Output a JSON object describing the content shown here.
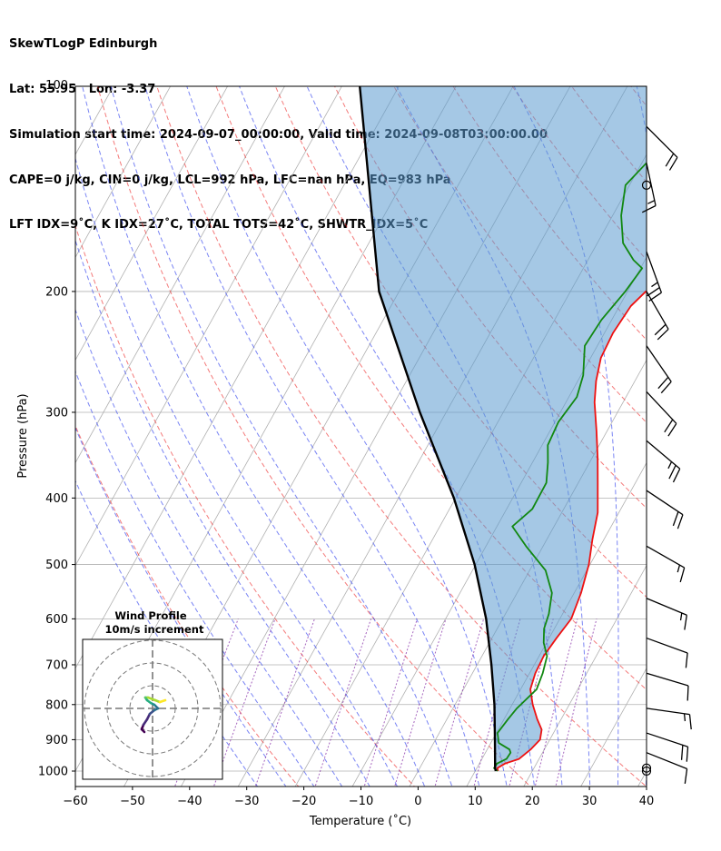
{
  "header": {
    "line1": "SkewTLogP Edinburgh",
    "line2": "Lat: 55.95   Lon: -3.37",
    "line3": "Simulation start time: 2024-09-07_00:00:00, Valid time: 2024-09-08T03:00:00.00",
    "line4": "CAPE=0 j/kg, CIN=0 j/kg, LCL=992 hPa, LFC=nan hPa, EQ=983 hPa",
    "line5": "LFT IDX=9˚C, K IDX=27˚C, TOTAL TOTS=42˚C, SHWTR_IDX=5˚C"
  },
  "chart_data": {
    "type": "skewt-logp",
    "xlabel": "Temperature (˚C)",
    "ylabel": "Pressure (hPa)",
    "xlim": [
      -60,
      40
    ],
    "ylim": [
      1040,
      100
    ],
    "x_ticks": [
      -60,
      -50,
      -40,
      -30,
      -20,
      -10,
      0,
      10,
      20,
      30,
      40
    ],
    "x_tick_labels": [
      "−60",
      "−50",
      "−40",
      "−30",
      "−20",
      "−10",
      "0",
      "10",
      "20",
      "30",
      "40"
    ],
    "y_ticks": [
      1000,
      900,
      800,
      700,
      600,
      500,
      400,
      300,
      200,
      100
    ],
    "y_scale": "log",
    "grid": true,
    "colors": {
      "temperature": "#ee1111",
      "dewpoint": "#118811",
      "parcel": "#000000",
      "shade": "#5b9bcf",
      "dry_adiabat": "#ee3333",
      "moist_adiabat": "#3344ee",
      "mixing_ratio": "#8833aa"
    },
    "series": [
      {
        "name": "",
        "role": "temperature",
        "points": [
          [
            14.0,
            1000
          ],
          [
            13.6,
            990
          ],
          [
            14.5,
            975
          ],
          [
            16.5,
            960
          ],
          [
            17.6,
            930
          ],
          [
            18.3,
            900
          ],
          [
            17.6,
            870
          ],
          [
            15.8,
            840
          ],
          [
            13.6,
            800
          ],
          [
            11.7,
            760
          ],
          [
            11.0,
            720
          ],
          [
            10.8,
            680
          ],
          [
            11.3,
            640
          ],
          [
            12.0,
            600
          ],
          [
            11.2,
            550
          ],
          [
            9.8,
            500
          ],
          [
            8.0,
            460
          ],
          [
            6.3,
            420
          ],
          [
            3.4,
            380
          ],
          [
            1.0,
            350
          ],
          [
            -1.8,
            320
          ],
          [
            -5.0,
            290
          ],
          [
            -6.8,
            270
          ],
          [
            -8.2,
            250
          ],
          [
            -8.5,
            230
          ],
          [
            -8.0,
            210
          ],
          [
            -6.8,
            200
          ],
          [
            -4.5,
            190
          ],
          [
            -3.0,
            180
          ],
          [
            -1.8,
            170
          ],
          [
            -0.2,
            160
          ],
          [
            3.7,
            150
          ],
          [
            5.6,
            140
          ],
          [
            7.4,
            130
          ],
          [
            8.3,
            120
          ],
          [
            10.5,
            110
          ],
          [
            11.4,
            100
          ]
        ]
      },
      {
        "name": "",
        "role": "dewpoint",
        "points": [
          [
            13.9,
            1000
          ],
          [
            13.0,
            990
          ],
          [
            13.1,
            975
          ],
          [
            14.3,
            960
          ],
          [
            14.4,
            940
          ],
          [
            13.9,
            930
          ],
          [
            11.4,
            910
          ],
          [
            10.2,
            880
          ],
          [
            10.7,
            840
          ],
          [
            11.2,
            810
          ],
          [
            12.8,
            760
          ],
          [
            12.3,
            720
          ],
          [
            11.4,
            680
          ],
          [
            9.5,
            650
          ],
          [
            8.2,
            620
          ],
          [
            7.6,
            590
          ],
          [
            6.1,
            550
          ],
          [
            2.8,
            510
          ],
          [
            -3.0,
            470
          ],
          [
            -7.3,
            440
          ],
          [
            -5.5,
            415
          ],
          [
            -5.6,
            380
          ],
          [
            -7.3,
            355
          ],
          [
            -9.0,
            335
          ],
          [
            -9.4,
            310
          ],
          [
            -8.6,
            285
          ],
          [
            -9.6,
            265
          ],
          [
            -12.2,
            240
          ],
          [
            -11.8,
            220
          ],
          [
            -10.4,
            200
          ],
          [
            -9.7,
            185
          ],
          [
            -12.0,
            180
          ],
          [
            -15.5,
            170
          ],
          [
            -18.5,
            155
          ],
          [
            -20.7,
            140
          ],
          [
            -18.4,
            125
          ],
          [
            -14.8,
            112
          ],
          [
            -11.7,
            100
          ]
        ]
      },
      {
        "name": "",
        "role": "parcel",
        "points": [
          [
            13.6,
            1000
          ],
          [
            13.2,
            990
          ],
          [
            10.4,
            900
          ],
          [
            6.9,
            800
          ],
          [
            2.5,
            700
          ],
          [
            -2.9,
            600
          ],
          [
            -10.2,
            500
          ],
          [
            -20.3,
            400
          ],
          [
            -34.6,
            300
          ],
          [
            -53.5,
            200
          ],
          [
            -77.0,
            100
          ]
        ]
      }
    ],
    "inset": {
      "title_line1": "Wind Profile",
      "title_line2": "10m/s increment",
      "hodograph_u": [
        -0.9,
        -1.2,
        -1.0,
        -0.6,
        -0.3,
        0.2,
        0.6,
        0.2,
        -0.2,
        -0.6,
        -0.8,
        -0.5,
        0.3,
        0.8,
        1.4
      ],
      "hodograph_v": [
        -2.6,
        -2.3,
        -1.8,
        -1.2,
        -0.6,
        -0.2,
        0.0,
        0.4,
        0.6,
        0.9,
        1.2,
        1.2,
        0.9,
        0.7,
        0.9
      ],
      "colormap": "viridis"
    },
    "wind_barbs": [
      {
        "p": 1000,
        "u": 0,
        "v": 0
      },
      {
        "p": 990,
        "u": 0,
        "v": 0
      },
      {
        "p": 940,
        "u": -10,
        "v": 4
      },
      {
        "p": 880,
        "u": -18,
        "v": 6
      },
      {
        "p": 810,
        "u": -14,
        "v": 2
      },
      {
        "p": 720,
        "u": -10,
        "v": 3
      },
      {
        "p": 640,
        "u": -11,
        "v": 4
      },
      {
        "p": 560,
        "u": -12,
        "v": 5
      },
      {
        "p": 470,
        "u": -14,
        "v": 8
      },
      {
        "p": 390,
        "u": -18,
        "v": 12
      },
      {
        "p": 330,
        "u": -19,
        "v": 16
      },
      {
        "p": 280,
        "u": -15,
        "v": 16
      },
      {
        "p": 240,
        "u": -11,
        "v": 16
      },
      {
        "p": 200,
        "u": -11,
        "v": 19
      },
      {
        "p": 175,
        "u": -8,
        "v": 22
      },
      {
        "p": 140,
        "u": 0,
        "v": 0
      },
      {
        "p": 130,
        "u": -3,
        "v": 14
      },
      {
        "p": 115,
        "u": -13,
        "v": 13
      }
    ]
  }
}
